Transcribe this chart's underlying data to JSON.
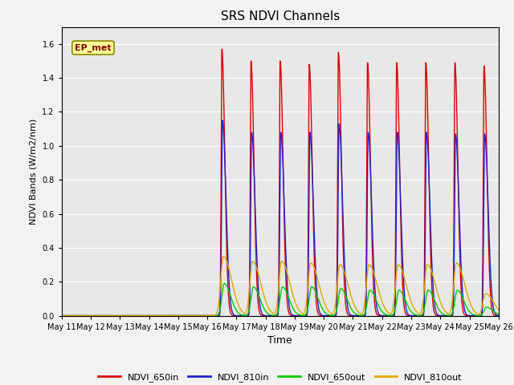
{
  "title": "SRS NDVI Channels",
  "xlabel": "Time",
  "ylabel": "NDVI Bands (W/m2/nm)",
  "ylim": [
    0,
    1.7
  ],
  "yticks": [
    0.0,
    0.2,
    0.4,
    0.6,
    0.8,
    1.0,
    1.2,
    1.4,
    1.6
  ],
  "x_tick_labels": [
    "May 11",
    "May 12",
    "May 13",
    "May 14",
    "May 15",
    "May 16",
    "May 17",
    "May 18",
    "May 19",
    "May 20",
    "May 21",
    "May 22",
    "May 23",
    "May 24",
    "May 25",
    "May 26"
  ],
  "plot_bg_color": "#e8e8e8",
  "fig_bg_color": "#f2f2f2",
  "grid_color": "#ffffff",
  "annotation_text": "EP_met",
  "colors": {
    "NDVI_650in": "#dd0000",
    "NDVI_810in": "#2222cc",
    "NDVI_650out": "#00cc00",
    "NDVI_810out": "#ddaa00"
  },
  "peaks_650in": [
    1.57,
    1.5,
    1.5,
    1.48,
    1.55,
    1.49,
    1.49,
    1.49,
    1.49,
    1.47
  ],
  "peaks_810in": [
    1.15,
    1.08,
    1.08,
    1.08,
    1.13,
    1.08,
    1.08,
    1.08,
    1.07,
    1.07
  ],
  "peaks_650out": [
    0.19,
    0.17,
    0.17,
    0.17,
    0.16,
    0.15,
    0.15,
    0.15,
    0.15,
    0.05
  ],
  "peaks_810out": [
    0.35,
    0.32,
    0.32,
    0.31,
    0.3,
    0.3,
    0.3,
    0.3,
    0.31,
    0.13
  ],
  "total_days": 15,
  "n_points": 6000
}
